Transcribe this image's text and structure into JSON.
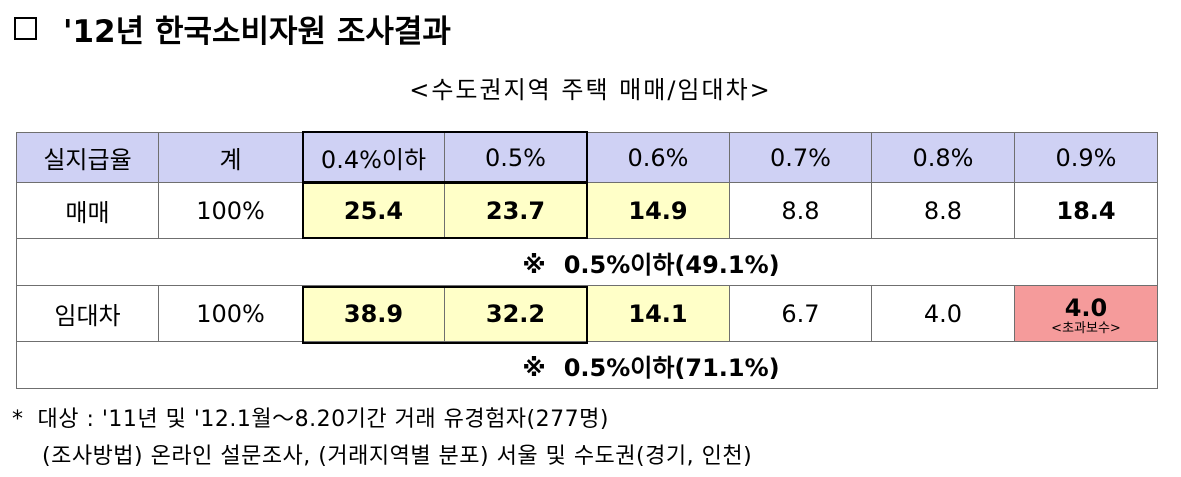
{
  "title": "'12년  한국소비자원  조사결과",
  "subtitle": "<수도권지역 주택 매매/임대차>",
  "table": {
    "headers": [
      "실지급율",
      "계",
      "0.4%이하",
      "0.5%",
      "0.6%",
      "0.7%",
      "0.8%",
      "0.9%"
    ],
    "sale": {
      "label": "매매",
      "total": "100%",
      "values": [
        "25.4",
        "23.7",
        "14.9",
        "8.8",
        "8.8",
        "18.4"
      ],
      "note_symbol": "※",
      "note": "0.5%이하(49.1%)"
    },
    "lease": {
      "label": "임대차",
      "total": "100%",
      "values": [
        "38.9",
        "32.2",
        "14.1",
        "6.7",
        "4.0",
        "4.0"
      ],
      "over_note": "<초과보수>",
      "note_symbol": "※",
      "note": "0.5%이하(71.1%)"
    }
  },
  "footnotes": {
    "star": "*",
    "line1": "대상 : '11년 및 '12.1월～8.20기간 거래 유경험자(277명)",
    "line2": "(조사방법) 온라인 설문조사, (거래지역별 분포) 서울 및 수도권(경기, 인천)"
  },
  "colors": {
    "header_bg": "#cfd1f4",
    "highlight_yellow": "#ffffc8",
    "highlight_pink": "#f59b9b"
  }
}
